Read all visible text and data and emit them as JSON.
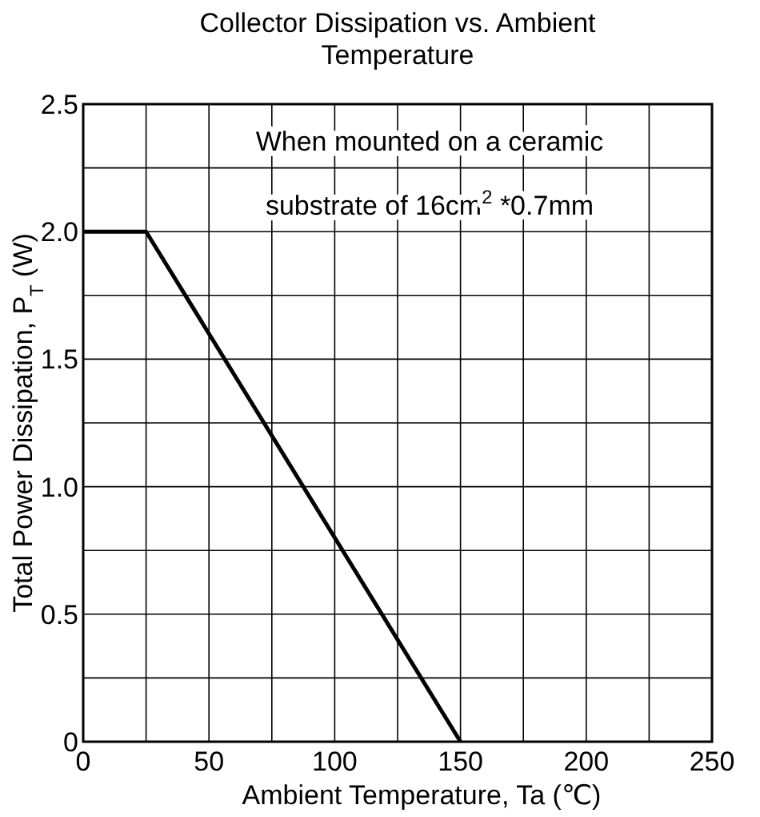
{
  "chart_data": {
    "type": "line",
    "title": "Collector Dissipation vs. Ambient Temperature",
    "xlabel": "Ambient Temperature, Ta (℃)",
    "ylabel": "Total Power Dissipation, P$_{T}$ (W)",
    "annotations": [
      "When mounted on a ceramic substrate of 16cm$^{2}$ *0.7mm"
    ],
    "x": [
      0,
      25,
      150
    ],
    "series": [
      {
        "color": "#000000",
        "values": [
          2.0,
          2.0,
          0
        ]
      }
    ],
    "xlim": [
      0,
      250
    ],
    "ylim": [
      0,
      2.5
    ],
    "xticks": [
      0,
      {
        "value": 25,
        "label": null
      },
      50,
      {
        "value": 75,
        "label": null
      },
      100,
      {
        "value": 125,
        "label": null
      },
      150,
      {
        "value": 175,
        "label": null
      },
      200,
      {
        "value": 225,
        "label": null
      },
      250
    ],
    "yticks": [
      0,
      {
        "value": 0.25,
        "label": null
      },
      0.5,
      {
        "value": 0.75,
        "label": null
      },
      {
        "value": 1,
        "label": "1.0"
      },
      {
        "value": 1.25,
        "label": null
      },
      1.5,
      {
        "value": 1.75,
        "label": null
      },
      {
        "value": 2,
        "label": "2.0"
      },
      {
        "value": 2.25,
        "label": null
      },
      2.5
    ],
    "grid": true,
    "marker": "none",
    "line_style": "solid"
  }
}
